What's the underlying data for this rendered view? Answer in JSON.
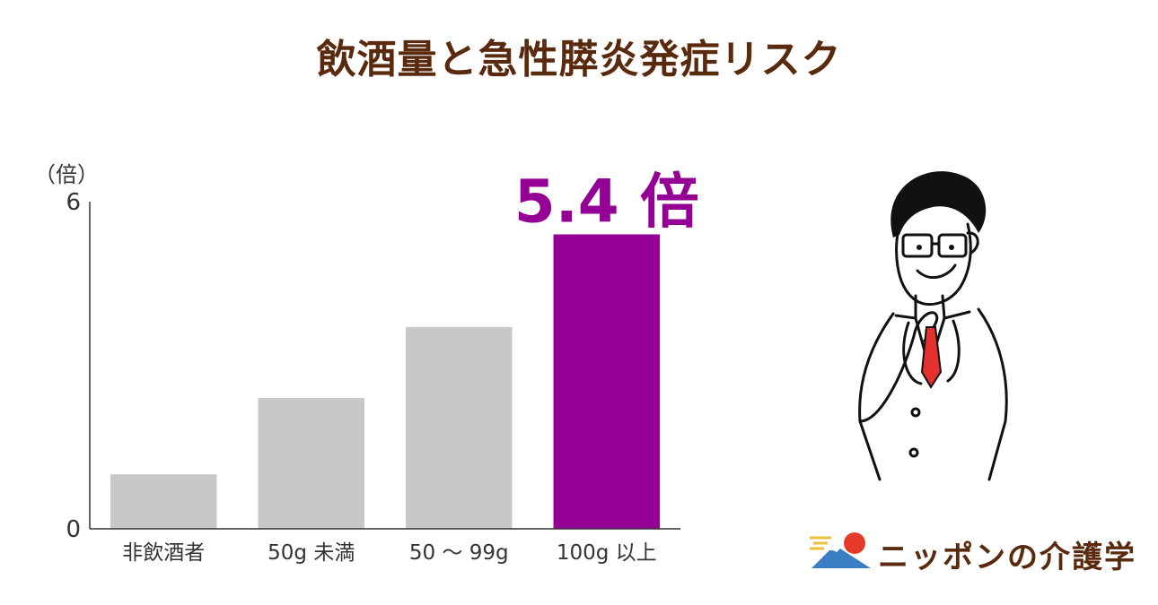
{
  "title": "飲酒量と急性膵炎発症リスク",
  "chart_data": {
    "type": "bar",
    "categories": [
      "非飲酒者",
      "50g 未満",
      "50 〜 99g",
      "100g 以上"
    ],
    "values": [
      1.0,
      2.4,
      3.7,
      5.4
    ],
    "ylim": [
      0,
      6
    ],
    "yticks": [
      0,
      6
    ],
    "ylabel": "（倍）",
    "xlabel": "",
    "grid": false,
    "highlight_index": 3,
    "annotation": "5.4 倍",
    "colors": {
      "bar": "#c8c8c8",
      "highlight": "#940094",
      "axis": "#333333",
      "text": "#333333"
    }
  },
  "logo": {
    "text": "ニッポンの介護学",
    "icon": "mount-fuji-sun-icon"
  },
  "illustration": {
    "icon": "smiling-doctor-icon"
  }
}
